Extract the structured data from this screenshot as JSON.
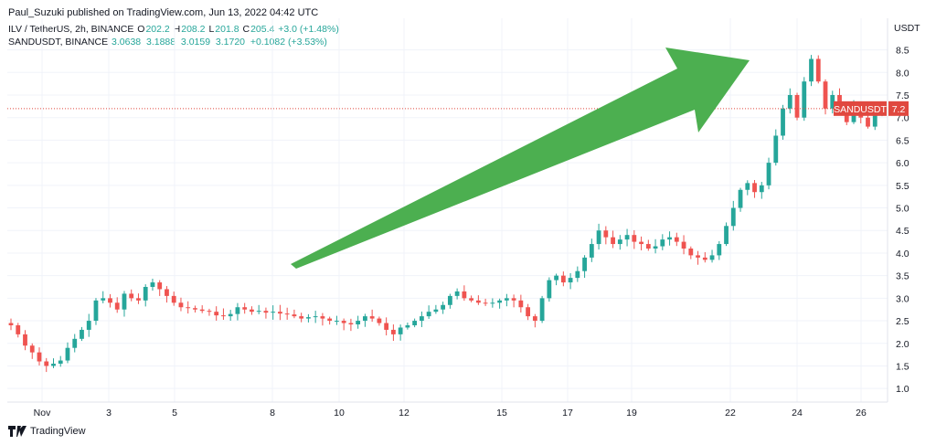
{
  "header": {
    "published_line": "Paul_Suzuki published on TradingView.com, Jun 13, 2022 04:42 UTC",
    "row1": {
      "symbol": "ILV / TetherUS, 2h, BINANCE",
      "o_label": "O",
      "o_value": "202.2",
      "h_label": "H",
      "h_value": "208.2",
      "l_label": "L",
      "l_value": "201.8",
      "c_label": "C",
      "c_value": "205.4",
      "change": "+3.0 (+1.48%)"
    },
    "row2": {
      "symbol": "SANDUSDT, BINANCE",
      "values": "3.0638  3.1888  3.0159  3.1720  +0.1082 (+3.53%)"
    }
  },
  "footer": {
    "brand": "TradingView"
  },
  "colors": {
    "up": "#26a69a",
    "down": "#ef5350",
    "arrow": "#4caf50",
    "price_tag": "#e0483f"
  },
  "chart_data": {
    "type": "candlestick",
    "y_axis_unit": "USDT",
    "y_ticks": [
      "8.5",
      "8.0",
      "7.5",
      "7.0",
      "6.5",
      "6.0",
      "5.5",
      "5.0",
      "4.5",
      "4.0",
      "3.5",
      "3.0",
      "2.5",
      "2.0",
      "1.5",
      "1.0"
    ],
    "ylim": [
      0.7,
      9.2
    ],
    "x_ticks": [
      "Nov",
      "3",
      "5",
      "8",
      "10",
      "12",
      "15",
      "17",
      "19",
      "22",
      "24",
      "26"
    ],
    "last_price_label": {
      "symbol": "SANDUSDT",
      "value": "7.2"
    },
    "annotation": "green up arrow",
    "series": [
      {
        "values": [
          2.4,
          2.2,
          1.95,
          1.8,
          1.6,
          1.5,
          1.55,
          1.62,
          1.9,
          2.1,
          2.3,
          2.5,
          2.95,
          3.0,
          2.9,
          2.75,
          3.1,
          3.0,
          2.95,
          3.25,
          3.35,
          3.2,
          3.05,
          2.9,
          2.8,
          2.78,
          2.75,
          2.72,
          2.7,
          2.62,
          2.6,
          2.65,
          2.8,
          2.75,
          2.7,
          2.72,
          2.68,
          2.7,
          2.66,
          2.64,
          2.6,
          2.55,
          2.58,
          2.6,
          2.55,
          2.5,
          2.5,
          2.45,
          2.42,
          2.5,
          2.6,
          2.55,
          2.45,
          2.3,
          2.2,
          2.35,
          2.4,
          2.5,
          2.6,
          2.7,
          2.75,
          2.85,
          3.05,
          3.15,
          3.0,
          2.95,
          2.9,
          2.88,
          2.9,
          2.95,
          3.0,
          2.95,
          2.8,
          2.6,
          2.5,
          3.0,
          3.4,
          3.5,
          3.35,
          3.45,
          3.6,
          3.9,
          4.2,
          4.5,
          4.35,
          4.2,
          4.3,
          4.4,
          4.25,
          4.2,
          4.1,
          4.15,
          4.3,
          4.35,
          4.25,
          4.1,
          3.95,
          3.9,
          3.85,
          3.95,
          4.2,
          4.6,
          5.0,
          5.4,
          5.55,
          5.35,
          5.5,
          6.0,
          6.6,
          7.2,
          7.5,
          7.0,
          7.8,
          8.3,
          7.8,
          7.2,
          7.5,
          7.1,
          6.9,
          7.3,
          7.0,
          6.8,
          7.1,
          7.2
        ]
      }
    ]
  }
}
